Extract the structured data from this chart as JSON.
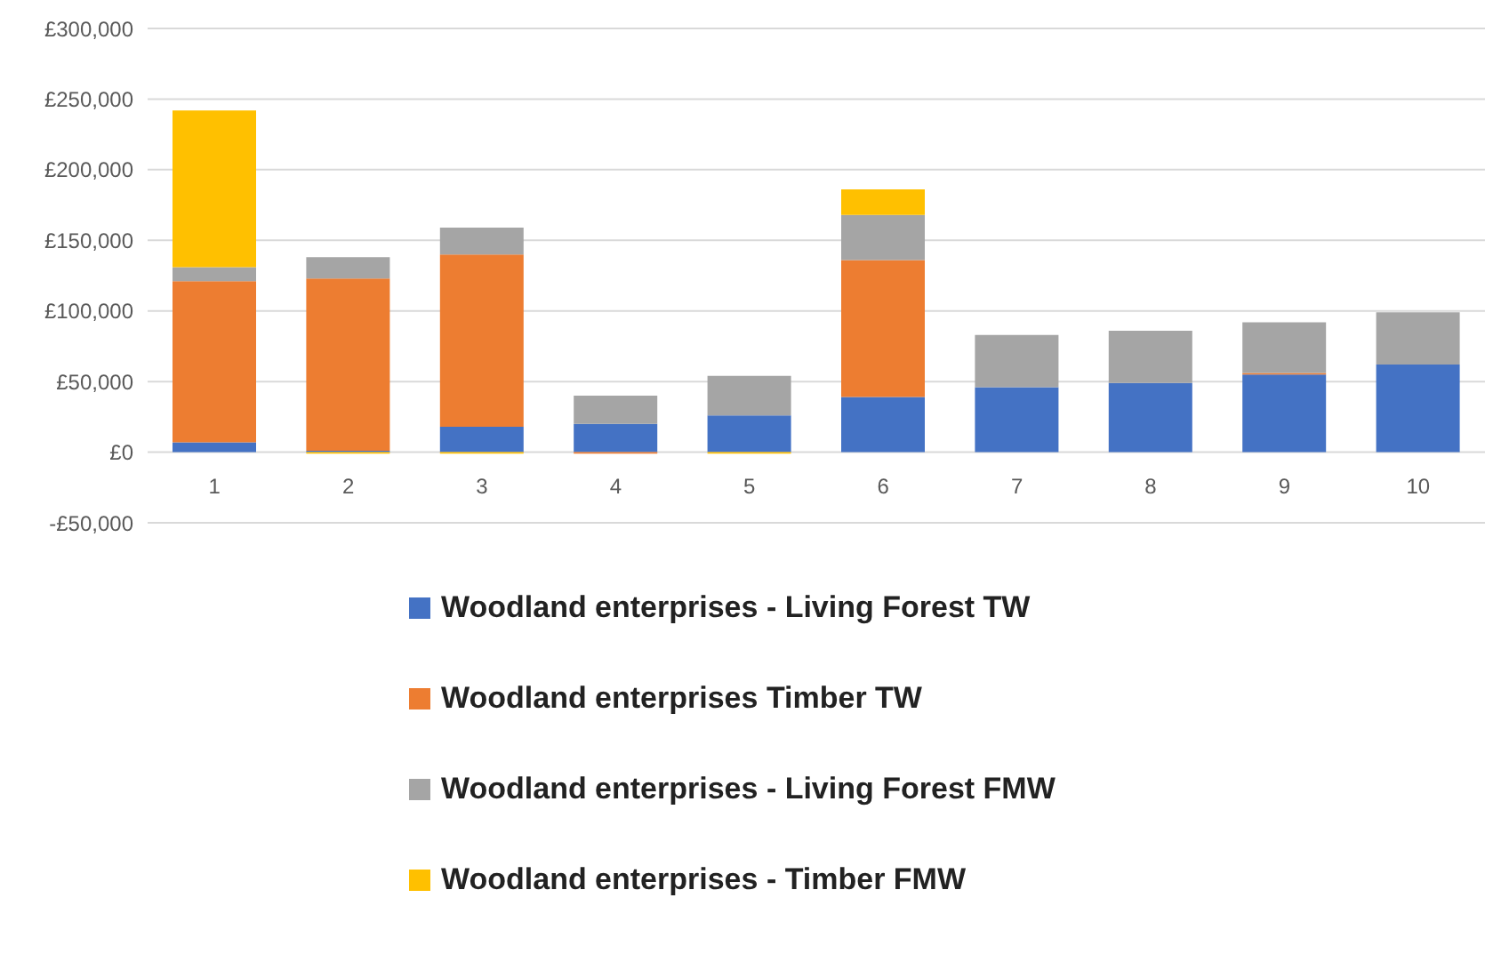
{
  "chart_data": {
    "type": "bar",
    "stacked": true,
    "categories": [
      "1",
      "2",
      "3",
      "4",
      "5",
      "6",
      "7",
      "8",
      "9",
      "10"
    ],
    "series": [
      {
        "name": "Woodland enterprises - Living Forest TW",
        "color": "#4472c4",
        "values": [
          7000,
          1000,
          18000,
          20000,
          26000,
          39000,
          46000,
          49000,
          55000,
          62000
        ]
      },
      {
        "name": "Woodland enterprises Timber TW",
        "color": "#ed7d31",
        "values": [
          114000,
          122000,
          122000,
          -1000,
          0,
          97000,
          0,
          0,
          1000,
          0
        ]
      },
      {
        "name": "Woodland enterprises - Living Forest FMW",
        "color": "#a5a5a5",
        "values": [
          10000,
          15000,
          19000,
          20000,
          28000,
          32000,
          37000,
          37000,
          36000,
          37000
        ]
      },
      {
        "name": "Woodland enterprises - Timber FMW",
        "color": "#ffc000",
        "values": [
          111000,
          -1000,
          -1000,
          0,
          -1000,
          18000,
          0,
          0,
          0,
          0
        ]
      }
    ],
    "ylim": [
      -50000,
      300000
    ],
    "yticks": [
      {
        "value": -50000,
        "label": "-£50,000"
      },
      {
        "value": 0,
        "label": "£0"
      },
      {
        "value": 50000,
        "label": "£50,000"
      },
      {
        "value": 100000,
        "label": "£100,000"
      },
      {
        "value": 150000,
        "label": "£150,000"
      },
      {
        "value": 200000,
        "label": "£200,000"
      },
      {
        "value": 250000,
        "label": "£250,000"
      },
      {
        "value": 300000,
        "label": "£300,000"
      }
    ],
    "grid": "y",
    "legend": "bottom"
  }
}
